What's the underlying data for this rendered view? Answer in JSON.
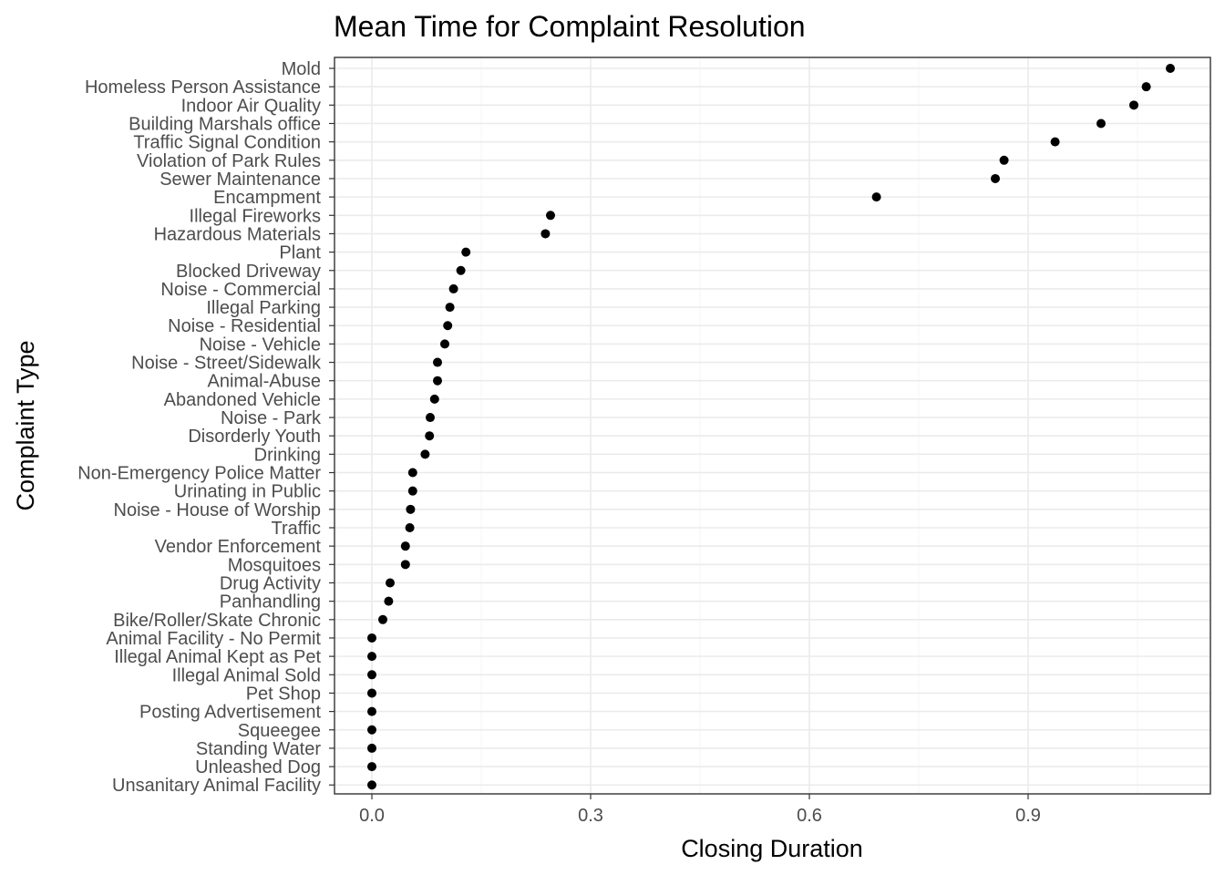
{
  "chart_data": {
    "type": "scatter",
    "title": "Mean Time for Complaint Resolution",
    "xlabel": "Closing Duration",
    "ylabel": "Complaint Type",
    "xlim": [
      -0.05,
      1.15
    ],
    "x_ticks": [
      0.0,
      0.3,
      0.6,
      0.9
    ],
    "x_tick_labels": [
      "0.0",
      "0.3",
      "0.6",
      "0.9"
    ],
    "grid": true,
    "point_color": "#000000",
    "categories": [
      "Mold",
      "Homeless Person Assistance",
      "Indoor Air Quality",
      "Building Marshals office",
      "Traffic Signal Condition",
      "Violation of Park Rules",
      "Sewer Maintenance",
      "Encampment",
      "Illegal Fireworks",
      "Hazardous Materials",
      "Plant",
      "Blocked Driveway",
      "Noise - Commercial",
      "Illegal Parking",
      "Noise - Residential",
      "Noise - Vehicle",
      "Noise - Street/Sidewalk",
      "Animal-Abuse",
      "Abandoned Vehicle",
      "Noise - Park",
      "Disorderly Youth",
      "Drinking",
      "Non-Emergency Police Matter",
      "Urinating in Public",
      "Noise - House of Worship",
      "Traffic",
      "Vendor Enforcement",
      "Mosquitoes",
      "Drug Activity",
      "Panhandling",
      "Bike/Roller/Skate Chronic",
      "Animal Facility - No Permit",
      "Illegal Animal Kept as Pet",
      "Illegal Animal Sold",
      "Pet Shop",
      "Posting Advertisement",
      "Squeegee",
      "Standing Water",
      "Unleashed Dog",
      "Unsanitary Animal Facility"
    ],
    "values": [
      1.095,
      1.062,
      1.045,
      1.0,
      0.937,
      0.867,
      0.855,
      0.692,
      0.245,
      0.238,
      0.129,
      0.122,
      0.112,
      0.107,
      0.104,
      0.1,
      0.09,
      0.09,
      0.086,
      0.08,
      0.079,
      0.073,
      0.056,
      0.056,
      0.053,
      0.052,
      0.046,
      0.046,
      0.025,
      0.023,
      0.015,
      0.0,
      0.0,
      0.0,
      0.0,
      0.0,
      0.0,
      0.0,
      0.0,
      0.0
    ]
  }
}
